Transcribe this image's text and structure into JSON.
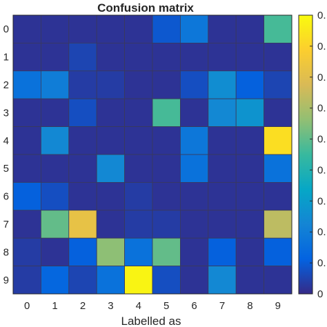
{
  "chart_data": {
    "type": "heatmap",
    "title": "Confusion matrix",
    "xlabel": "Labelled as",
    "ylabel": "",
    "x_ticks": [
      "0",
      "1",
      "2",
      "3",
      "4",
      "5",
      "6",
      "7",
      "8",
      "9"
    ],
    "y_ticks": [
      "0",
      "1",
      "2",
      "3",
      "4",
      "5",
      "6",
      "7",
      "8",
      "9"
    ],
    "colormap": "parula",
    "value_range": [
      0,
      1
    ],
    "colorbar_ticks": [
      "0",
      "0.",
      "0.",
      "0.",
      "0.",
      "0.",
      "0.",
      "0.",
      "0.",
      "0."
    ],
    "matrix": [
      [
        0.02,
        0.02,
        0.02,
        0.02,
        0.02,
        0.1,
        0.2,
        0.02,
        0.02,
        0.52
      ],
      [
        0.02,
        0.02,
        0.06,
        0.02,
        0.02,
        0.02,
        0.02,
        0.02,
        0.02,
        0.02
      ],
      [
        0.18,
        0.22,
        0.04,
        0.04,
        0.02,
        0.02,
        0.08,
        0.28,
        0.12,
        0.06
      ],
      [
        0.02,
        0.02,
        0.08,
        0.02,
        0.02,
        0.52,
        0.02,
        0.26,
        0.3,
        0.02
      ],
      [
        0.02,
        0.26,
        0.02,
        0.02,
        0.02,
        0.02,
        0.2,
        0.02,
        0.02,
        0.92
      ],
      [
        0.02,
        0.02,
        0.02,
        0.26,
        0.02,
        0.02,
        0.18,
        0.02,
        0.02,
        0.18
      ],
      [
        0.12,
        0.08,
        0.02,
        0.02,
        0.04,
        0.02,
        0.02,
        0.02,
        0.02,
        0.02
      ],
      [
        0.02,
        0.56,
        0.8,
        0.02,
        0.04,
        0.04,
        0.02,
        0.02,
        0.02,
        0.7
      ],
      [
        0.04,
        0.02,
        0.12,
        0.62,
        0.18,
        0.56,
        0.02,
        0.12,
        0.02,
        0.12
      ],
      [
        0.04,
        0.14,
        0.06,
        0.18,
        0.98,
        0.08,
        0.02,
        0.26,
        0.02,
        0.02
      ]
    ],
    "grid": false,
    "legend": "colorbar-right"
  }
}
